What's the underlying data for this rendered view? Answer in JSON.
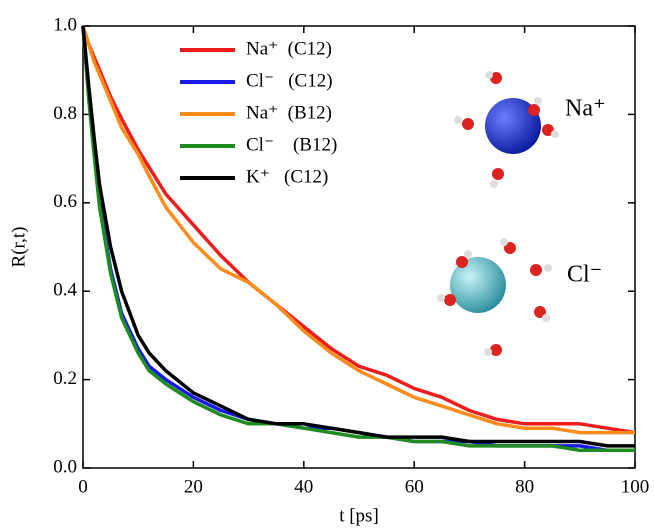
{
  "chart_data": {
    "type": "line",
    "xlabel": "t [ps]",
    "ylabel": "R(r,t)",
    "x": [
      0,
      1,
      2,
      3,
      5,
      7,
      10,
      12,
      15,
      20,
      25,
      30,
      35,
      40,
      45,
      50,
      55,
      60,
      65,
      70,
      75,
      80,
      85,
      90,
      95,
      100
    ],
    "series": [
      {
        "name": "Na⁺  (C12)",
        "color": "#ee1c1c",
        "values": [
          1.0,
          0.96,
          0.93,
          0.9,
          0.84,
          0.79,
          0.72,
          0.68,
          0.62,
          0.55,
          0.48,
          0.42,
          0.37,
          0.32,
          0.27,
          0.23,
          0.21,
          0.18,
          0.16,
          0.13,
          0.11,
          0.1,
          0.1,
          0.1,
          0.09,
          0.08
        ]
      },
      {
        "name": "Cl⁻   (C12)",
        "color": "#1a1ae6",
        "values": [
          1.0,
          0.85,
          0.72,
          0.6,
          0.45,
          0.35,
          0.27,
          0.23,
          0.2,
          0.16,
          0.13,
          0.11,
          0.1,
          0.09,
          0.09,
          0.08,
          0.07,
          0.06,
          0.06,
          0.06,
          0.05,
          0.05,
          0.05,
          0.05,
          0.04,
          0.04
        ]
      },
      {
        "name": "Na⁺  (B12)",
        "color": "#ff8c1a",
        "values": [
          1.0,
          0.96,
          0.92,
          0.89,
          0.83,
          0.77,
          0.71,
          0.66,
          0.59,
          0.51,
          0.45,
          0.42,
          0.37,
          0.31,
          0.26,
          0.22,
          0.19,
          0.16,
          0.14,
          0.12,
          0.1,
          0.09,
          0.09,
          0.08,
          0.08,
          0.08
        ]
      },
      {
        "name": "Cl⁻    (B12)",
        "color": "#1e8c1e",
        "values": [
          1.0,
          0.84,
          0.71,
          0.59,
          0.44,
          0.34,
          0.26,
          0.22,
          0.19,
          0.15,
          0.12,
          0.1,
          0.1,
          0.09,
          0.08,
          0.07,
          0.07,
          0.06,
          0.06,
          0.05,
          0.05,
          0.05,
          0.05,
          0.04,
          0.04,
          0.04
        ]
      },
      {
        "name": "K⁺   (C12)",
        "color": "#000000",
        "values": [
          1.0,
          0.87,
          0.75,
          0.64,
          0.5,
          0.4,
          0.3,
          0.26,
          0.22,
          0.17,
          0.14,
          0.11,
          0.1,
          0.1,
          0.09,
          0.08,
          0.07,
          0.07,
          0.07,
          0.06,
          0.06,
          0.06,
          0.06,
          0.06,
          0.05,
          0.05
        ]
      }
    ],
    "annotations": [
      "Na⁺",
      "Cl⁻"
    ],
    "xlim": [
      0,
      100
    ],
    "xticks": [
      0,
      20,
      40,
      60,
      80,
      100
    ],
    "ylim": [
      0,
      1
    ],
    "yticks": [
      {
        "value": 0,
        "label": "0.0"
      },
      {
        "value": 0.2,
        "label": "0.2"
      },
      {
        "value": 0.4,
        "label": "0.4"
      },
      {
        "value": 0.6,
        "label": "0.6"
      },
      {
        "value": 0.8,
        "label": "0.8"
      },
      {
        "value": 1,
        "label": "1.0"
      }
    ],
    "grid": false
  }
}
